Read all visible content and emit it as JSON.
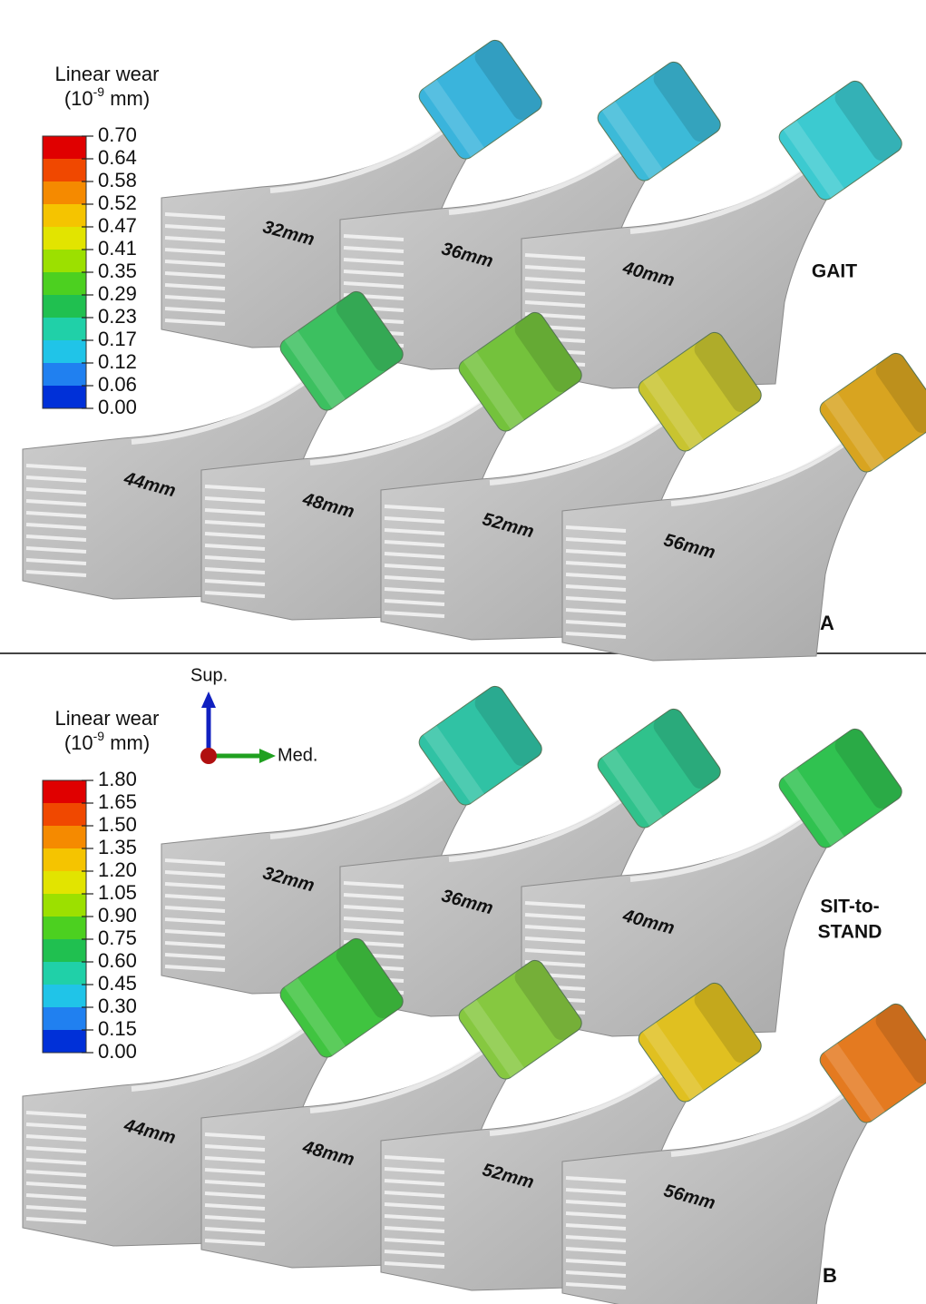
{
  "axes": {
    "up": "Sup.",
    "right": "Med."
  },
  "panels": [
    {
      "legend": {
        "title": "Linear wear",
        "units": {
          "base": "(10",
          "exponent": "-9",
          "suffix": " mm)"
        },
        "ticks": [
          "0.70",
          "0.64",
          "0.58",
          "0.52",
          "0.47",
          "0.41",
          "0.35",
          "0.29",
          "0.23",
          "0.17",
          "0.12",
          "0.06",
          "0.00"
        ]
      },
      "stems": [
        {
          "label": "32mm",
          "head_color": "#3ab4dc"
        },
        {
          "label": "36mm",
          "head_color": "#3cbad8"
        },
        {
          "label": "40mm",
          "head_color": "#3ccad0"
        },
        {
          "label": "44mm",
          "head_color": "#3cc060"
        },
        {
          "label": "48mm",
          "head_color": "#74c23c"
        },
        {
          "label": "52mm",
          "head_color": "#c8c430"
        },
        {
          "label": "56mm",
          "head_color": "#d8a420"
        }
      ],
      "condition": [
        "GAIT"
      ],
      "letter": "A"
    },
    {
      "legend": {
        "title": "Linear wear",
        "units": {
          "base": "(10",
          "exponent": "-9",
          "suffix": " mm)"
        },
        "ticks": [
          "1.80",
          "1.65",
          "1.50",
          "1.35",
          "1.20",
          "1.05",
          "0.90",
          "0.75",
          "0.60",
          "0.45",
          "0.30",
          "0.15",
          "0.00"
        ]
      },
      "stems": [
        {
          "label": "32mm",
          "head_color": "#30c2a4"
        },
        {
          "label": "36mm",
          "head_color": "#30c28c"
        },
        {
          "label": "40mm",
          "head_color": "#30c250"
        },
        {
          "label": "44mm",
          "head_color": "#40c440"
        },
        {
          "label": "48mm",
          "head_color": "#86c840"
        },
        {
          "label": "52mm",
          "head_color": "#e0c020"
        },
        {
          "label": "56mm",
          "head_color": "#e47a20"
        }
      ],
      "condition": [
        "SIT-to-",
        "STAND"
      ],
      "letter": "B"
    }
  ]
}
